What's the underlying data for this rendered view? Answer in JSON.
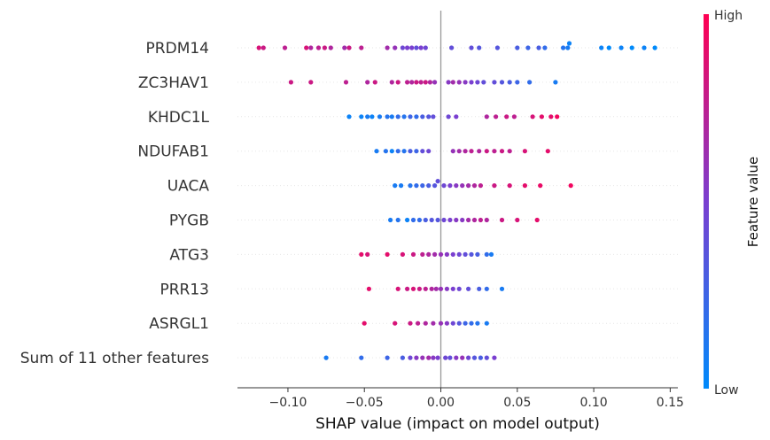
{
  "chart_data": {
    "type": "scatter",
    "subtype": "shap-beeswarm",
    "xlabel": "SHAP value (impact on model output)",
    "xlim": [
      -0.133,
      0.155
    ],
    "x_ticks": [
      -0.1,
      -0.05,
      0.0,
      0.05,
      0.1,
      0.15
    ],
    "x_tick_labels": [
      "−0.10",
      "−0.05",
      "0.00",
      "0.05",
      "0.10",
      "0.15"
    ],
    "colorbar": {
      "title": "Feature value",
      "high_label": "High",
      "low_label": "Low",
      "low_color": "#008afb",
      "high_color": "#ff0052"
    },
    "colors": {
      "low": "#008afb",
      "mid": "#7a3fd0",
      "high": "#ff0052",
      "zero_line": "#999999",
      "row_grid": "#e6e6e6"
    },
    "features": [
      {
        "name": "PRDM14",
        "points": [
          [
            -0.119,
            0.85
          ],
          [
            -0.116,
            0.8
          ],
          [
            -0.102,
            0.75
          ],
          [
            -0.088,
            0.85
          ],
          [
            -0.085,
            0.7
          ],
          [
            -0.08,
            0.75
          ],
          [
            -0.076,
            0.8
          ],
          [
            -0.072,
            0.7
          ],
          [
            -0.063,
            0.65
          ],
          [
            -0.06,
            0.8
          ],
          [
            -0.052,
            0.75
          ],
          [
            -0.035,
            0.65
          ],
          [
            -0.03,
            0.6
          ],
          [
            -0.025,
            0.45
          ],
          [
            -0.022,
            0.5
          ],
          [
            -0.019,
            0.5
          ],
          [
            -0.016,
            0.4
          ],
          [
            -0.013,
            0.5
          ],
          [
            -0.01,
            0.45
          ],
          [
            0.007,
            0.4
          ],
          [
            0.02,
            0.4
          ],
          [
            0.025,
            0.35
          ],
          [
            0.037,
            0.35
          ],
          [
            0.05,
            0.3
          ],
          [
            0.057,
            0.25
          ],
          [
            0.064,
            0.3
          ],
          [
            0.068,
            0.2
          ],
          [
            0.08,
            0.15
          ],
          [
            0.083,
            0.1
          ],
          [
            0.084,
            0.05
          ],
          [
            0.105,
            0.05
          ],
          [
            0.11,
            0.0
          ],
          [
            0.118,
            0.05
          ],
          [
            0.125,
            0.0
          ],
          [
            0.133,
            0.05
          ],
          [
            0.14,
            0.0
          ]
        ]
      },
      {
        "name": "ZC3HAV1",
        "points": [
          [
            -0.098,
            0.8
          ],
          [
            -0.085,
            0.8
          ],
          [
            -0.062,
            0.75
          ],
          [
            -0.048,
            0.7
          ],
          [
            -0.043,
            0.8
          ],
          [
            -0.032,
            0.7
          ],
          [
            -0.028,
            0.8
          ],
          [
            -0.022,
            0.75
          ],
          [
            -0.019,
            0.7
          ],
          [
            -0.016,
            0.8
          ],
          [
            -0.013,
            0.75
          ],
          [
            -0.01,
            0.8
          ],
          [
            -0.007,
            0.7
          ],
          [
            -0.004,
            0.6
          ],
          [
            0.005,
            0.55
          ],
          [
            0.008,
            0.65
          ],
          [
            0.012,
            0.6
          ],
          [
            0.016,
            0.55
          ],
          [
            0.02,
            0.5
          ],
          [
            0.024,
            0.45
          ],
          [
            0.028,
            0.4
          ],
          [
            0.035,
            0.4
          ],
          [
            0.04,
            0.35
          ],
          [
            0.045,
            0.3
          ],
          [
            0.05,
            0.25
          ],
          [
            0.058,
            0.2
          ],
          [
            0.075,
            0.1
          ]
        ]
      },
      {
        "name": "KHDC1L",
        "points": [
          [
            -0.06,
            0.05
          ],
          [
            -0.052,
            0.05
          ],
          [
            -0.048,
            0.1
          ],
          [
            -0.045,
            0.05
          ],
          [
            -0.04,
            0.1
          ],
          [
            -0.035,
            0.15
          ],
          [
            -0.032,
            0.1
          ],
          [
            -0.028,
            0.2
          ],
          [
            -0.024,
            0.15
          ],
          [
            -0.02,
            0.25
          ],
          [
            -0.016,
            0.2
          ],
          [
            -0.012,
            0.3
          ],
          [
            -0.008,
            0.35
          ],
          [
            -0.005,
            0.4
          ],
          [
            0.005,
            0.45
          ],
          [
            0.01,
            0.5
          ],
          [
            0.03,
            0.7
          ],
          [
            0.036,
            0.75
          ],
          [
            0.043,
            0.8
          ],
          [
            0.048,
            0.75
          ],
          [
            0.06,
            0.85
          ],
          [
            0.066,
            0.9
          ],
          [
            0.072,
            0.9
          ],
          [
            0.076,
            0.95
          ]
        ]
      },
      {
        "name": "NDUFAB1",
        "points": [
          [
            -0.042,
            0.1
          ],
          [
            -0.036,
            0.15
          ],
          [
            -0.032,
            0.05
          ],
          [
            -0.028,
            0.2
          ],
          [
            -0.024,
            0.15
          ],
          [
            -0.02,
            0.3
          ],
          [
            -0.016,
            0.25
          ],
          [
            -0.012,
            0.4
          ],
          [
            -0.008,
            0.45
          ],
          [
            0.008,
            0.6
          ],
          [
            0.012,
            0.65
          ],
          [
            0.016,
            0.7
          ],
          [
            0.02,
            0.75
          ],
          [
            0.025,
            0.7
          ],
          [
            0.03,
            0.8
          ],
          [
            0.035,
            0.75
          ],
          [
            0.04,
            0.8
          ],
          [
            0.045,
            0.75
          ],
          [
            0.055,
            0.85
          ],
          [
            0.07,
            0.9
          ]
        ]
      },
      {
        "name": "UACA",
        "points": [
          [
            -0.03,
            0.1
          ],
          [
            -0.026,
            0.1
          ],
          [
            -0.02,
            0.15
          ],
          [
            -0.016,
            0.2
          ],
          [
            -0.012,
            0.25
          ],
          [
            -0.008,
            0.3
          ],
          [
            -0.004,
            0.35
          ],
          [
            -0.002,
            0.4
          ],
          [
            0.002,
            0.45
          ],
          [
            0.006,
            0.5
          ],
          [
            0.01,
            0.55
          ],
          [
            0.014,
            0.6
          ],
          [
            0.018,
            0.65
          ],
          [
            0.022,
            0.7
          ],
          [
            0.026,
            0.75
          ],
          [
            0.035,
            0.8
          ],
          [
            0.045,
            0.85
          ],
          [
            0.055,
            0.9
          ],
          [
            0.065,
            0.92
          ],
          [
            0.085,
            0.95
          ]
        ]
      },
      {
        "name": "PYGB",
        "points": [
          [
            -0.033,
            0.1
          ],
          [
            -0.028,
            0.15
          ],
          [
            -0.022,
            0.05
          ],
          [
            -0.018,
            0.2
          ],
          [
            -0.014,
            0.2
          ],
          [
            -0.01,
            0.3
          ],
          [
            -0.006,
            0.35
          ],
          [
            -0.002,
            0.35
          ],
          [
            0.002,
            0.45
          ],
          [
            0.006,
            0.5
          ],
          [
            0.01,
            0.55
          ],
          [
            0.014,
            0.55
          ],
          [
            0.018,
            0.65
          ],
          [
            0.022,
            0.7
          ],
          [
            0.026,
            0.75
          ],
          [
            0.03,
            0.7
          ],
          [
            0.04,
            0.8
          ],
          [
            0.05,
            0.85
          ],
          [
            0.063,
            0.9
          ]
        ]
      },
      {
        "name": "ATG3",
        "points": [
          [
            -0.052,
            0.9
          ],
          [
            -0.048,
            0.85
          ],
          [
            -0.035,
            0.9
          ],
          [
            -0.025,
            0.85
          ],
          [
            -0.018,
            0.8
          ],
          [
            -0.012,
            0.75
          ],
          [
            -0.008,
            0.7
          ],
          [
            -0.004,
            0.65
          ],
          [
            0.0,
            0.6
          ],
          [
            0.004,
            0.55
          ],
          [
            0.008,
            0.5
          ],
          [
            0.012,
            0.45
          ],
          [
            0.016,
            0.4
          ],
          [
            0.02,
            0.35
          ],
          [
            0.024,
            0.3
          ],
          [
            0.03,
            0.2
          ],
          [
            0.033,
            0.1
          ]
        ]
      },
      {
        "name": "PRR13",
        "points": [
          [
            -0.047,
            0.9
          ],
          [
            -0.028,
            0.85
          ],
          [
            -0.022,
            0.8
          ],
          [
            -0.018,
            0.85
          ],
          [
            -0.014,
            0.8
          ],
          [
            -0.01,
            0.75
          ],
          [
            -0.006,
            0.7
          ],
          [
            -0.003,
            0.65
          ],
          [
            0.0,
            0.6
          ],
          [
            0.004,
            0.55
          ],
          [
            0.008,
            0.5
          ],
          [
            0.012,
            0.45
          ],
          [
            0.018,
            0.4
          ],
          [
            0.025,
            0.3
          ],
          [
            0.03,
            0.2
          ],
          [
            0.04,
            0.1
          ]
        ]
      },
      {
        "name": "ASRGL1",
        "points": [
          [
            -0.05,
            0.9
          ],
          [
            -0.03,
            0.85
          ],
          [
            -0.02,
            0.8
          ],
          [
            -0.015,
            0.75
          ],
          [
            -0.01,
            0.7
          ],
          [
            -0.005,
            0.65
          ],
          [
            0.0,
            0.6
          ],
          [
            0.004,
            0.55
          ],
          [
            0.008,
            0.45
          ],
          [
            0.012,
            0.35
          ],
          [
            0.016,
            0.25
          ],
          [
            0.02,
            0.2
          ],
          [
            0.024,
            0.15
          ],
          [
            0.03,
            0.1
          ]
        ]
      },
      {
        "name": "Sum of 11 other features",
        "points": [
          [
            -0.075,
            0.1
          ],
          [
            -0.052,
            0.2
          ],
          [
            -0.035,
            0.25
          ],
          [
            -0.025,
            0.3
          ],
          [
            -0.02,
            0.45
          ],
          [
            -0.016,
            0.55
          ],
          [
            -0.012,
            0.6
          ],
          [
            -0.008,
            0.65
          ],
          [
            -0.005,
            0.55
          ],
          [
            -0.002,
            0.5
          ],
          [
            0.003,
            0.45
          ],
          [
            0.006,
            0.4
          ],
          [
            0.01,
            0.55
          ],
          [
            0.014,
            0.6
          ],
          [
            0.018,
            0.45
          ],
          [
            0.022,
            0.35
          ],
          [
            0.026,
            0.3
          ],
          [
            0.03,
            0.4
          ],
          [
            0.035,
            0.5
          ]
        ]
      }
    ]
  }
}
